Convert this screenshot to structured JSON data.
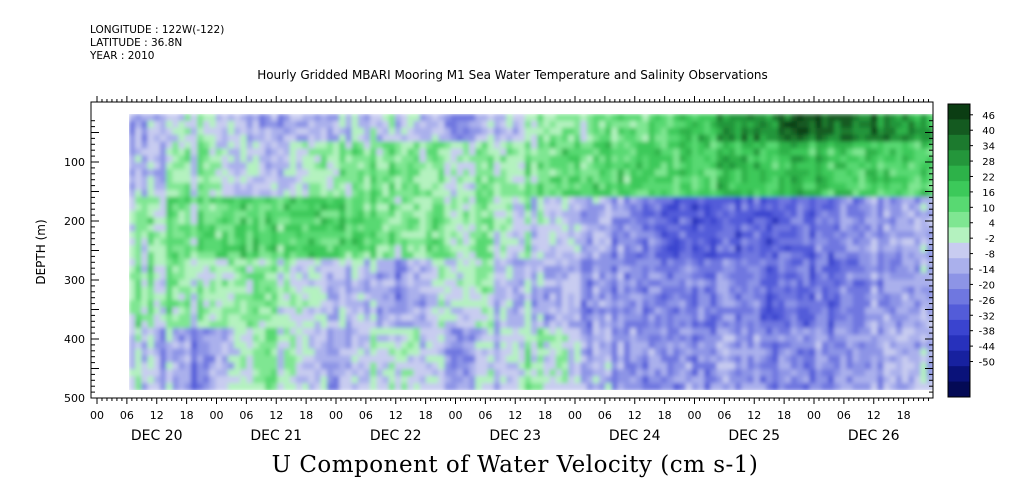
{
  "header": {
    "longitude": "LONGITUDE : 122W(-122)",
    "latitude": "LATITUDE : 36.8N",
    "year": "YEAR : 2010"
  },
  "chart_data": {
    "type": "heatmap",
    "title": "Hourly Gridded MBARI Mooring M1 Sea Water Temperature and Salinity Observations",
    "xlabel": "U Component of Water Velocity (cm s-1)",
    "ylabel": "DEPTH (m)",
    "y_axis": {
      "ticks": [
        100,
        200,
        300,
        400,
        500
      ],
      "range": [
        20,
        500
      ],
      "inverted": true
    },
    "x_axis": {
      "hour_tick_labels": [
        "00",
        "06",
        "12",
        "18",
        "00",
        "06",
        "12",
        "18",
        "00",
        "06",
        "12",
        "18",
        "00",
        "06",
        "12",
        "18",
        "00",
        "06",
        "12",
        "18",
        "00",
        "06",
        "12",
        "18",
        "00",
        "06",
        "12",
        "18"
      ],
      "day_labels": [
        "DEC 20",
        "DEC 21",
        "DEC 22",
        "DEC 23",
        "DEC 24",
        "DEC 25",
        "DEC 26"
      ],
      "data_start_hour": "DEC 20 05:00",
      "data_end_hour": "DEC 26 23:00"
    },
    "colorbar": {
      "tick_labels": [
        "46",
        "40",
        "34",
        "28",
        "22",
        "16",
        "10",
        "4",
        "-2",
        "-8",
        "-14",
        "-20",
        "-26",
        "-32",
        "-38",
        "-44",
        "-50"
      ],
      "min": -50,
      "max": 52,
      "colors_high_to_low": [
        "#0b3d13",
        "#145a20",
        "#1c7a2e",
        "#24963b",
        "#2db249",
        "#3cc95a",
        "#58d972",
        "#7fe692",
        "#b4f2bf",
        "#c8ccf0",
        "#aab0ec",
        "#8d94e6",
        "#6f77e0",
        "#535cd9",
        "#3a44cf",
        "#2731bc",
        "#17219f",
        "#0a127a",
        "#040a55"
      ]
    },
    "depth_bands": [
      {
        "depth": "20-60",
        "mean_values_dec20_to_dec26": [
          -6,
          4,
          -8,
          -4,
          2,
          -10,
          6,
          12,
          18,
          30,
          44,
          40,
          28
        ]
      },
      {
        "depth": "60-150",
        "mean_values_dec20_to_dec26": [
          -4,
          8,
          -6,
          10,
          14,
          6,
          12,
          16,
          20,
          22,
          26,
          20,
          18
        ]
      },
      {
        "depth": "150-260",
        "mean_values_dec20_to_dec26": [
          8,
          14,
          16,
          20,
          12,
          10,
          4,
          -6,
          -18,
          -22,
          -16,
          -10,
          -4
        ]
      },
      {
        "depth": "260-380",
        "mean_values_dec20_to_dec26": [
          10,
          6,
          8,
          0,
          -8,
          6,
          -4,
          -10,
          -12,
          -14,
          -16,
          -12,
          -6
        ]
      },
      {
        "depth": "380-490",
        "mean_values_dec20_to_dec26": [
          4,
          -14,
          10,
          -6,
          6,
          -8,
          8,
          -6,
          -10,
          -8,
          -12,
          -8,
          -4
        ]
      }
    ]
  }
}
